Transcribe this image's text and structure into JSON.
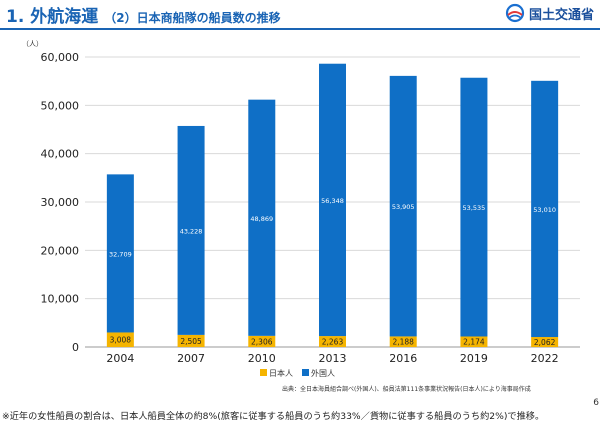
{
  "header": {
    "title": "1. 外航海運",
    "subtitle": "（2）日本商船隊の船員数の推移",
    "logo_text": "国土交通省"
  },
  "page_number": "6",
  "source_note": "出典：全日本海員組合調べ(外国人)、船員法第111条事業状況報告(日本人)により海事局作成",
  "footnote": "※近年の女性船員の割合は、日本人船員全体の約8%(旅客に従事する船員のうち約33%／貨物に従事する船員のうち約2%)で推移。",
  "colors": {
    "accent": "#1a64b4",
    "japanese": "#f5b400",
    "foreign": "#0f6fc6"
  },
  "chart_data": {
    "type": "bar",
    "stacked": true,
    "categories": [
      "2004",
      "2007",
      "2010",
      "2013",
      "2016",
      "2019",
      "2022"
    ],
    "series": [
      {
        "name": "日本人",
        "values": [
          3008,
          2505,
          2306,
          2263,
          2188,
          2174,
          2062
        ],
        "labels": [
          "3,008",
          "2,505",
          "2,306",
          "2,263",
          "2,188",
          "2,174",
          "2,062"
        ]
      },
      {
        "name": "外国人",
        "values": [
          32709,
          43228,
          48869,
          56348,
          53905,
          53535,
          53010
        ],
        "labels": [
          "32,709",
          "43,228",
          "48,869",
          "56,348",
          "53,905",
          "53,535",
          "53,010"
        ]
      }
    ],
    "y_unit": "（人）",
    "ylim": [
      0,
      60000
    ],
    "yticks": [
      0,
      10000,
      20000,
      30000,
      40000,
      50000,
      60000
    ],
    "ytick_labels": [
      "0",
      "10,000",
      "20,000",
      "30,000",
      "40,000",
      "50,000",
      "60,000"
    ],
    "grid": true,
    "legend_position": "bottom"
  }
}
